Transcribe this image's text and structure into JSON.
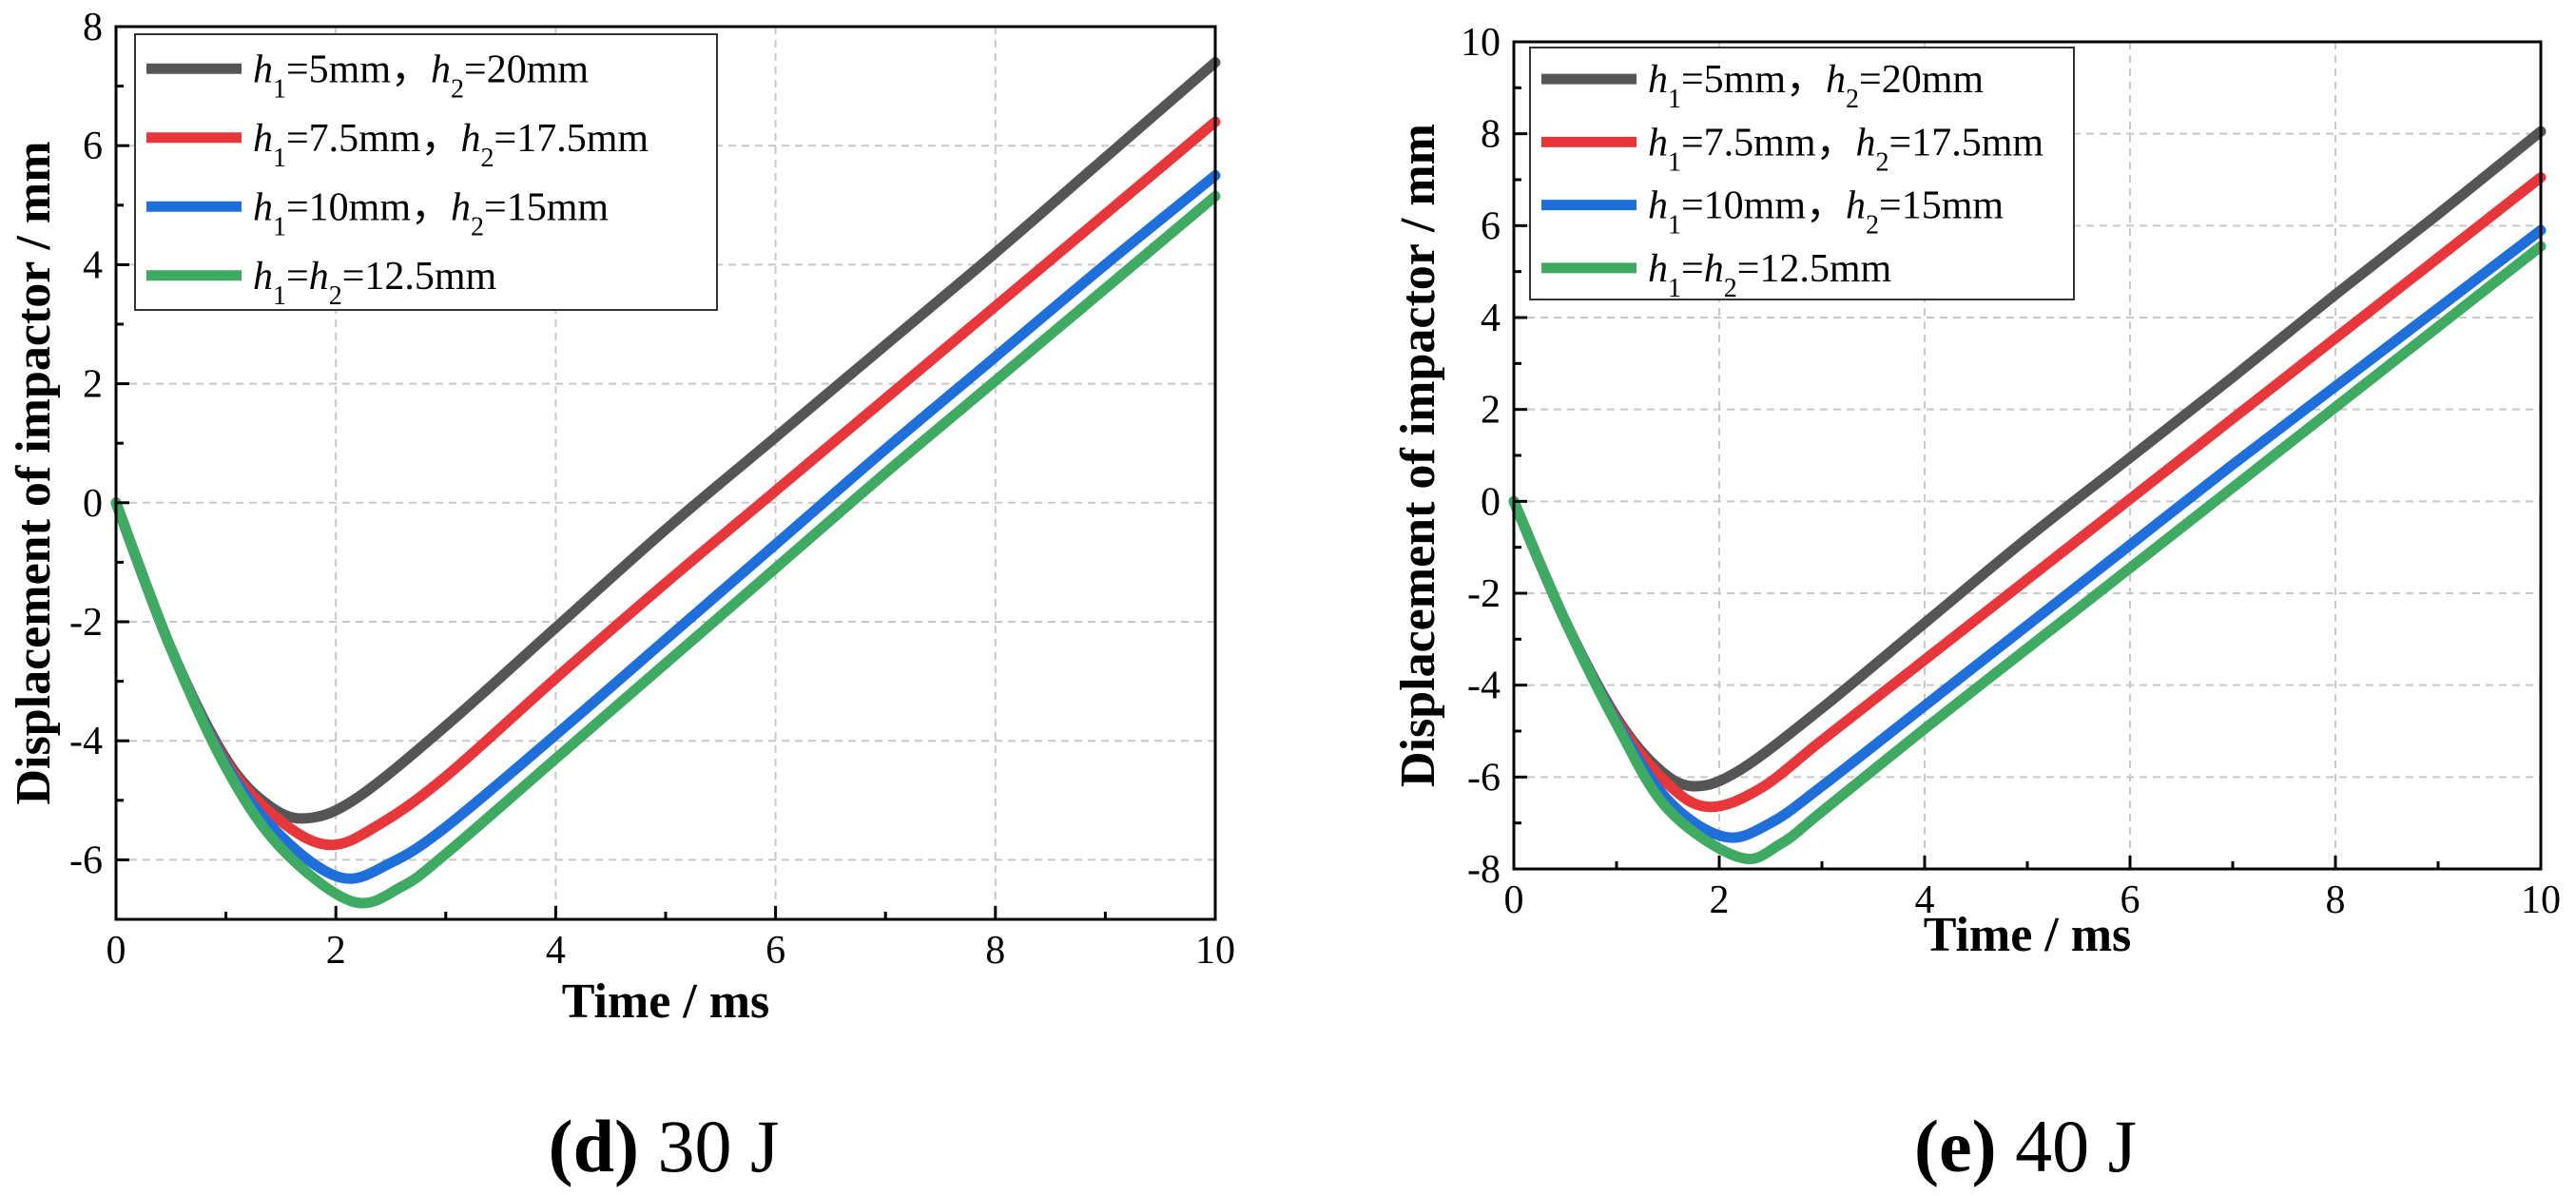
{
  "colors": {
    "series": [
      "#555555",
      "#e8373b",
      "#1f6fdb",
      "#3faa62"
    ],
    "grid": "#c8c8c8",
    "axis": "#000000"
  },
  "chart_data": [
    {
      "type": "line",
      "caption": {
        "letter": "(d)",
        "text": " 30 J"
      },
      "xlabel": "Time / ms",
      "ylabel": "Displacement of impactor / mm",
      "xlim": [
        0,
        10
      ],
      "ylim": [
        -7,
        8
      ],
      "xticks": [
        0,
        2,
        4,
        6,
        8,
        10
      ],
      "yticks": [
        -6,
        -4,
        -2,
        0,
        2,
        4,
        6,
        8
      ],
      "grid": true,
      "legend_position": "top-left",
      "series": [
        {
          "legend": [
            {
              "t": "h",
              "i": true
            },
            {
              "t": "1",
              "sub": true
            },
            {
              "t": "=5mm，"
            },
            {
              "t": "h",
              "i": true
            },
            {
              "t": "2",
              "sub": true
            },
            {
              "t": "=20mm"
            }
          ],
          "x": [
            0,
            0.5,
            1.0,
            1.4,
            1.75,
            2.2,
            3,
            4,
            5,
            6,
            7,
            8,
            9,
            10
          ],
          "y": [
            0,
            -2.45,
            -4.3,
            -5.1,
            -5.3,
            -4.95,
            -3.75,
            -2.1,
            -0.45,
            1.1,
            2.65,
            4.2,
            5.8,
            7.4
          ]
        },
        {
          "legend": [
            {
              "t": "h",
              "i": true
            },
            {
              "t": "1",
              "sub": true
            },
            {
              "t": "=7.5mm，"
            },
            {
              "t": "h",
              "i": true
            },
            {
              "t": "2",
              "sub": true
            },
            {
              "t": "=17.5mm"
            }
          ],
          "x": [
            0,
            0.5,
            1.0,
            1.5,
            1.95,
            2.4,
            3,
            4,
            5,
            6,
            7,
            8,
            9,
            10
          ],
          "y": [
            0,
            -2.45,
            -4.35,
            -5.35,
            -5.75,
            -5.4,
            -4.6,
            -2.95,
            -1.35,
            0.2,
            1.75,
            3.3,
            4.85,
            6.4
          ]
        },
        {
          "legend": [
            {
              "t": "h",
              "i": true
            },
            {
              "t": "1",
              "sub": true
            },
            {
              "t": "=10mm，"
            },
            {
              "t": "h",
              "i": true
            },
            {
              "t": "2",
              "sub": true
            },
            {
              "t": "=15mm"
            }
          ],
          "x": [
            0,
            0.5,
            1.0,
            1.5,
            2.05,
            2.5,
            3,
            4,
            5,
            6,
            7,
            8,
            9,
            10
          ],
          "y": [
            0,
            -2.45,
            -4.4,
            -5.6,
            -6.3,
            -6.05,
            -5.45,
            -3.9,
            -2.3,
            -0.7,
            0.9,
            2.45,
            4.0,
            5.5
          ]
        },
        {
          "legend": [
            {
              "t": "h",
              "i": true
            },
            {
              "t": "1",
              "sub": true
            },
            {
              "t": "="
            },
            {
              "t": "h",
              "i": true
            },
            {
              "t": "2",
              "sub": true
            },
            {
              "t": "=12.5mm"
            }
          ],
          "x": [
            0,
            0.5,
            1.0,
            1.5,
            2.15,
            2.6,
            3,
            4,
            5,
            6,
            7,
            8,
            9,
            10
          ],
          "y": [
            0,
            -2.45,
            -4.45,
            -5.8,
            -6.7,
            -6.45,
            -5.9,
            -4.3,
            -2.7,
            -1.1,
            0.5,
            2.05,
            3.6,
            5.15
          ]
        }
      ]
    },
    {
      "type": "line",
      "caption": {
        "letter": "(e)",
        "text": " 40 J"
      },
      "xlabel": "Time / ms",
      "ylabel": "Displacement of impactor / mm",
      "xlim": [
        0,
        10
      ],
      "ylim": [
        -8,
        10
      ],
      "xticks": [
        0,
        2,
        4,
        6,
        8,
        10
      ],
      "yticks": [
        -8,
        -6,
        -4,
        -2,
        0,
        2,
        4,
        6,
        8,
        10
      ],
      "grid": true,
      "legend_position": "top-left",
      "series": [
        {
          "legend": [
            {
              "t": "h",
              "i": true
            },
            {
              "t": "1",
              "sub": true
            },
            {
              "t": "=5mm，"
            },
            {
              "t": "h",
              "i": true
            },
            {
              "t": "2",
              "sub": true
            },
            {
              "t": "=20mm"
            }
          ],
          "x": [
            0,
            0.5,
            1.0,
            1.4,
            1.75,
            2.2,
            3,
            4,
            5,
            6,
            7,
            8,
            9,
            10
          ],
          "y": [
            0,
            -2.6,
            -4.7,
            -5.8,
            -6.2,
            -5.85,
            -4.5,
            -2.65,
            -0.8,
            0.95,
            2.7,
            4.5,
            6.25,
            8.05
          ]
        },
        {
          "legend": [
            {
              "t": "h",
              "i": true
            },
            {
              "t": "1",
              "sub": true
            },
            {
              "t": "=7.5mm，"
            },
            {
              "t": "h",
              "i": true
            },
            {
              "t": "2",
              "sub": true
            },
            {
              "t": "=17.5mm"
            }
          ],
          "x": [
            0,
            0.5,
            1.0,
            1.5,
            1.9,
            2.4,
            3,
            4,
            5,
            6,
            7,
            8,
            9,
            10
          ],
          "y": [
            0,
            -2.6,
            -4.75,
            -6.15,
            -6.65,
            -6.25,
            -5.2,
            -3.45,
            -1.7,
            0.05,
            1.8,
            3.55,
            5.3,
            7.05
          ]
        },
        {
          "legend": [
            {
              "t": "h",
              "i": true
            },
            {
              "t": "1",
              "sub": true
            },
            {
              "t": "=10mm，"
            },
            {
              "t": "h",
              "i": true
            },
            {
              "t": "2",
              "sub": true
            },
            {
              "t": "=15mm"
            }
          ],
          "x": [
            0,
            0.5,
            1.0,
            1.5,
            2.05,
            2.5,
            3,
            4,
            5,
            6,
            7,
            8,
            9,
            10
          ],
          "y": [
            0,
            -2.6,
            -4.8,
            -6.5,
            -7.3,
            -7.0,
            -6.2,
            -4.45,
            -2.7,
            -0.95,
            0.8,
            2.5,
            4.2,
            5.9
          ]
        },
        {
          "legend": [
            {
              "t": "h",
              "i": true
            },
            {
              "t": "1",
              "sub": true
            },
            {
              "t": "="
            },
            {
              "t": "h",
              "i": true
            },
            {
              "t": "2",
              "sub": true
            },
            {
              "t": "=12.5mm"
            }
          ],
          "x": [
            0,
            0.5,
            1.0,
            1.5,
            2.2,
            2.6,
            3,
            4,
            5,
            6,
            7,
            8,
            9,
            10
          ],
          "y": [
            0,
            -2.6,
            -4.85,
            -6.7,
            -7.75,
            -7.45,
            -6.75,
            -4.95,
            -3.2,
            -1.45,
            0.3,
            2.05,
            3.8,
            5.55
          ]
        }
      ]
    }
  ]
}
